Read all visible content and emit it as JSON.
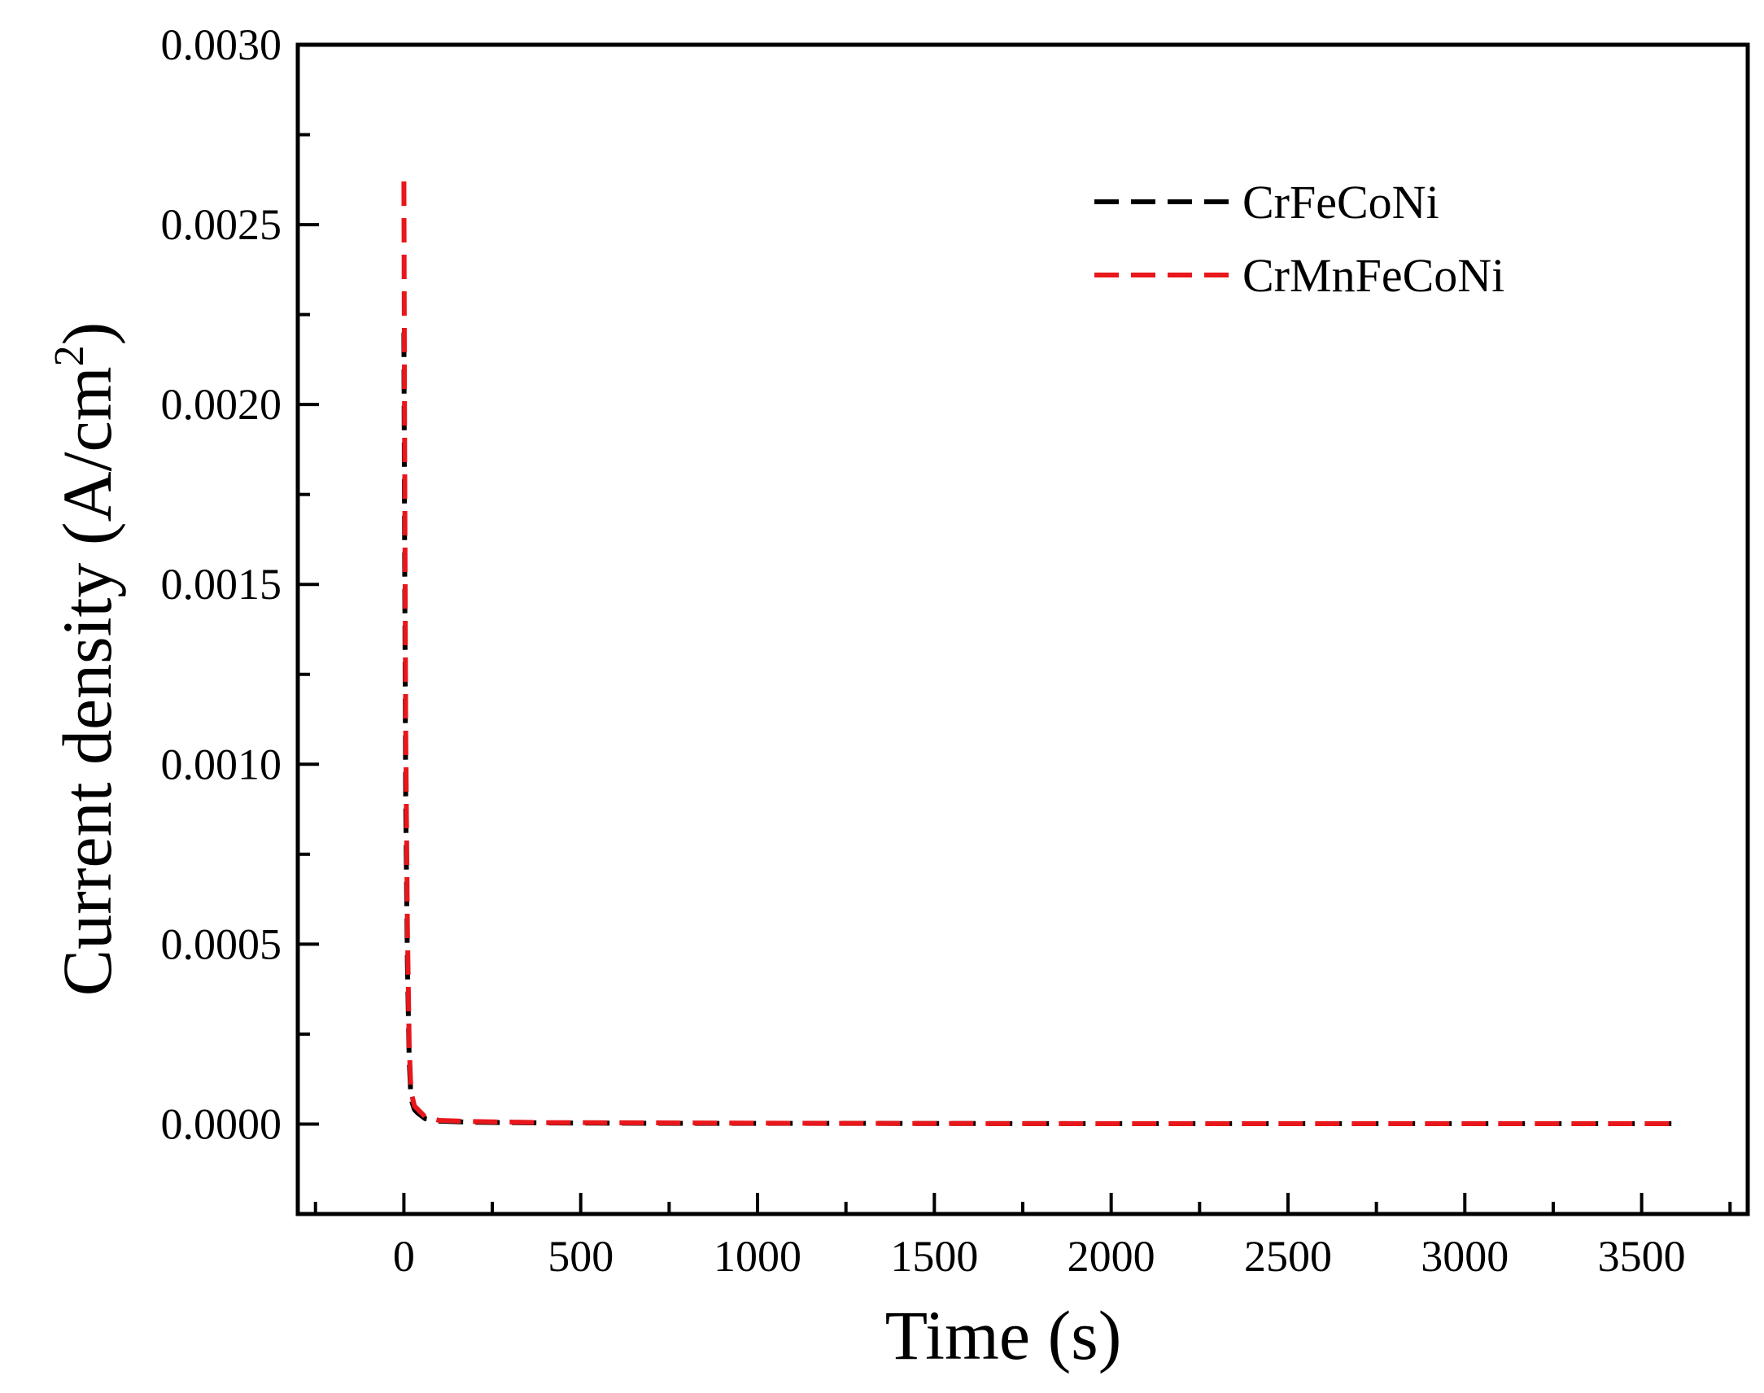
{
  "chart_data": {
    "type": "line",
    "title": "",
    "xlabel": "Time (s)",
    "ylabel": "Current density (A/cm",
    "ylabel_sup": "2",
    "ylabel_close": ")",
    "xlim": [
      -300,
      3800
    ],
    "ylim": [
      -0.00025,
      0.003
    ],
    "xticks": [
      0,
      500,
      1000,
      1500,
      2000,
      2500,
      3000,
      3500
    ],
    "xtick_labels": [
      "0",
      "500",
      "1000",
      "1500",
      "2000",
      "2500",
      "3000",
      "3500"
    ],
    "yticks": [
      0,
      0.0005,
      0.001,
      0.0015,
      0.002,
      0.0025,
      0.003
    ],
    "ytick_labels": [
      "0.0000",
      "0.0005",
      "0.0010",
      "0.0015",
      "0.0020",
      "0.0025",
      "0.0030"
    ],
    "legend_position": "top-right",
    "series": [
      {
        "name": "CrFeCoNi",
        "color": "#000000",
        "x": [
          0,
          2,
          5,
          10,
          15,
          20,
          30,
          40,
          60,
          100,
          200,
          400,
          800,
          1200,
          2000,
          2800,
          3600
        ],
        "y": [
          0.0022,
          0.0016,
          0.0009,
          0.00045,
          0.00018,
          7e-05,
          4e-05,
          3e-05,
          1.5e-05,
          8e-06,
          5e-06,
          3e-06,
          2e-06,
          2e-06,
          1e-06,
          1e-06,
          1e-06
        ]
      },
      {
        "name": "CrMnFeCoNi",
        "color": "#e8171b",
        "x": [
          0,
          2,
          5,
          10,
          15,
          20,
          30,
          40,
          60,
          100,
          200,
          400,
          800,
          1200,
          2000,
          2800,
          3600
        ],
        "y": [
          0.00262,
          0.0019,
          0.0011,
          0.00055,
          0.00022,
          9e-05,
          5e-05,
          4e-05,
          2e-05,
          1e-05,
          7e-06,
          4e-06,
          3e-06,
          2e-06,
          1e-06,
          1e-06,
          1e-06
        ]
      }
    ]
  }
}
